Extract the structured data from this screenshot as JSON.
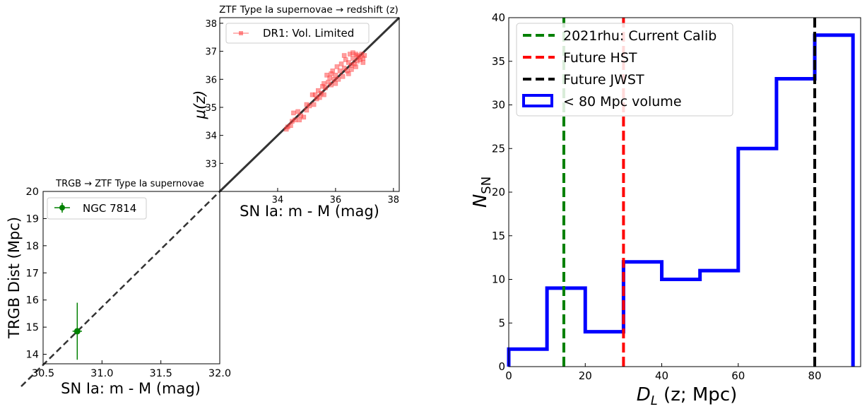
{
  "chart_data": [
    {
      "type": "scatter",
      "title": "ZTF Type Ia supernovae → redshift (z)",
      "xlabel": "SN Ia: m - M (mag)",
      "ylabel": "μ(z)",
      "xlim": [
        32.0,
        38.2
      ],
      "ylim": [
        32.0,
        38.2
      ],
      "xticks": [
        34,
        36,
        38
      ],
      "yticks": [
        33,
        34,
        35,
        36,
        37,
        38
      ],
      "grid": false,
      "legend_position": "top-left",
      "series": [
        {
          "name": "DR1: Vol. Limited",
          "color": "#ff3b3b",
          "marker": "square",
          "points": [
            [
              34.3,
              34.22
            ],
            [
              34.35,
              34.3
            ],
            [
              34.45,
              34.35
            ],
            [
              34.5,
              34.5
            ],
            [
              34.55,
              34.8
            ],
            [
              34.6,
              34.55
            ],
            [
              34.7,
              34.85
            ],
            [
              34.75,
              34.55
            ],
            [
              34.8,
              34.7
            ],
            [
              34.9,
              34.65
            ],
            [
              35.0,
              34.9
            ],
            [
              35.0,
              35.1
            ],
            [
              35.1,
              35.05
            ],
            [
              35.2,
              35.45
            ],
            [
              35.25,
              35.1
            ],
            [
              35.3,
              35.45
            ],
            [
              35.35,
              35.3
            ],
            [
              35.4,
              35.6
            ],
            [
              35.45,
              35.35
            ],
            [
              35.5,
              35.5
            ],
            [
              35.55,
              35.75
            ],
            [
              35.6,
              35.45
            ],
            [
              35.6,
              35.85
            ],
            [
              35.65,
              35.7
            ],
            [
              35.7,
              36.15
            ],
            [
              35.75,
              35.9
            ],
            [
              35.8,
              36.05
            ],
            [
              35.85,
              35.8
            ],
            [
              35.9,
              36.3
            ],
            [
              35.95,
              36.0
            ],
            [
              36.0,
              36.15
            ],
            [
              36.0,
              35.85
            ],
            [
              36.05,
              36.45
            ],
            [
              36.1,
              36.0
            ],
            [
              36.15,
              36.3
            ],
            [
              36.2,
              36.55
            ],
            [
              36.25,
              36.1
            ],
            [
              36.3,
              36.4
            ],
            [
              36.35,
              36.7
            ],
            [
              36.4,
              36.3
            ],
            [
              36.45,
              36.6
            ],
            [
              36.5,
              36.9
            ],
            [
              36.55,
              36.5
            ],
            [
              36.6,
              36.75
            ],
            [
              36.65,
              36.55
            ],
            [
              36.7,
              36.9
            ],
            [
              36.75,
              36.65
            ],
            [
              36.8,
              36.8
            ],
            [
              36.85,
              36.7
            ],
            [
              36.9,
              36.9
            ],
            [
              36.95,
              36.75
            ],
            [
              37.0,
              36.85
            ],
            [
              36.6,
              36.95
            ],
            [
              36.7,
              36.45
            ],
            [
              36.3,
              36.85
            ],
            [
              36.45,
              36.2
            ],
            [
              35.85,
              36.2
            ],
            [
              36.55,
              36.35
            ],
            [
              36.75,
              36.85
            ],
            [
              36.95,
              36.6
            ]
          ]
        },
        {
          "name": "",
          "type": "line",
          "style": "solid",
          "color": "#333333",
          "points": [
            [
              32.0,
              32.0
            ],
            [
              38.2,
              38.2
            ]
          ]
        }
      ]
    },
    {
      "type": "scatter",
      "title": "TRGB → ZTF Type Ia supernovae",
      "xlabel": "SN Ia: m - M (mag)",
      "ylabel": "TRGB Dist (Mpc)",
      "xlim": [
        30.5,
        32.0
      ],
      "ylim": [
        13.65,
        20.0
      ],
      "xticks": [
        30.5,
        31.0,
        31.5,
        32.0
      ],
      "yticks": [
        14,
        15,
        16,
        17,
        18,
        19,
        20
      ],
      "grid": false,
      "legend_position": "top-left",
      "series": [
        {
          "name": "NGC 7814",
          "color": "#008000",
          "marker": "circle",
          "points": [
            [
              30.79,
              14.85
            ]
          ],
          "yerr": [
            [
              1.05,
              1.05
            ]
          ],
          "xerr": [
            [
              0.04,
              0.04
            ]
          ]
        },
        {
          "name": "",
          "type": "line",
          "style": "dashed",
          "color": "#333333",
          "points": [
            [
              30.5,
              13.65
            ],
            [
              32.0,
              20.0
            ]
          ]
        }
      ]
    },
    {
      "type": "histogram",
      "title": "",
      "xlabel": "D_L (z; Mpc)",
      "ylabel": "N_SN",
      "xlim": [
        0,
        92
      ],
      "ylim": [
        0,
        40
      ],
      "xticks": [
        0,
        20,
        40,
        60,
        80
      ],
      "yticks": [
        0,
        5,
        10,
        15,
        20,
        25,
        30,
        35,
        40
      ],
      "grid": false,
      "legend_position": "top-left",
      "bins": [
        0,
        10,
        20,
        30,
        40,
        50,
        60,
        70,
        80,
        90
      ],
      "values": [
        2,
        9,
        4,
        12,
        10,
        11,
        25,
        33,
        38
      ],
      "series": [
        {
          "name": "< 80 Mpc volume",
          "color": "#0000ff",
          "style": "step"
        }
      ],
      "vlines": [
        {
          "name": "2021rhu: Current Calib",
          "x": 14.4,
          "color": "#008000",
          "style": "dashed"
        },
        {
          "name": "Future HST",
          "x": 30.0,
          "color": "#ff0000",
          "style": "dashed"
        },
        {
          "name": "Future JWST",
          "x": 80.0,
          "color": "#000000",
          "style": "dashed"
        }
      ]
    }
  ]
}
